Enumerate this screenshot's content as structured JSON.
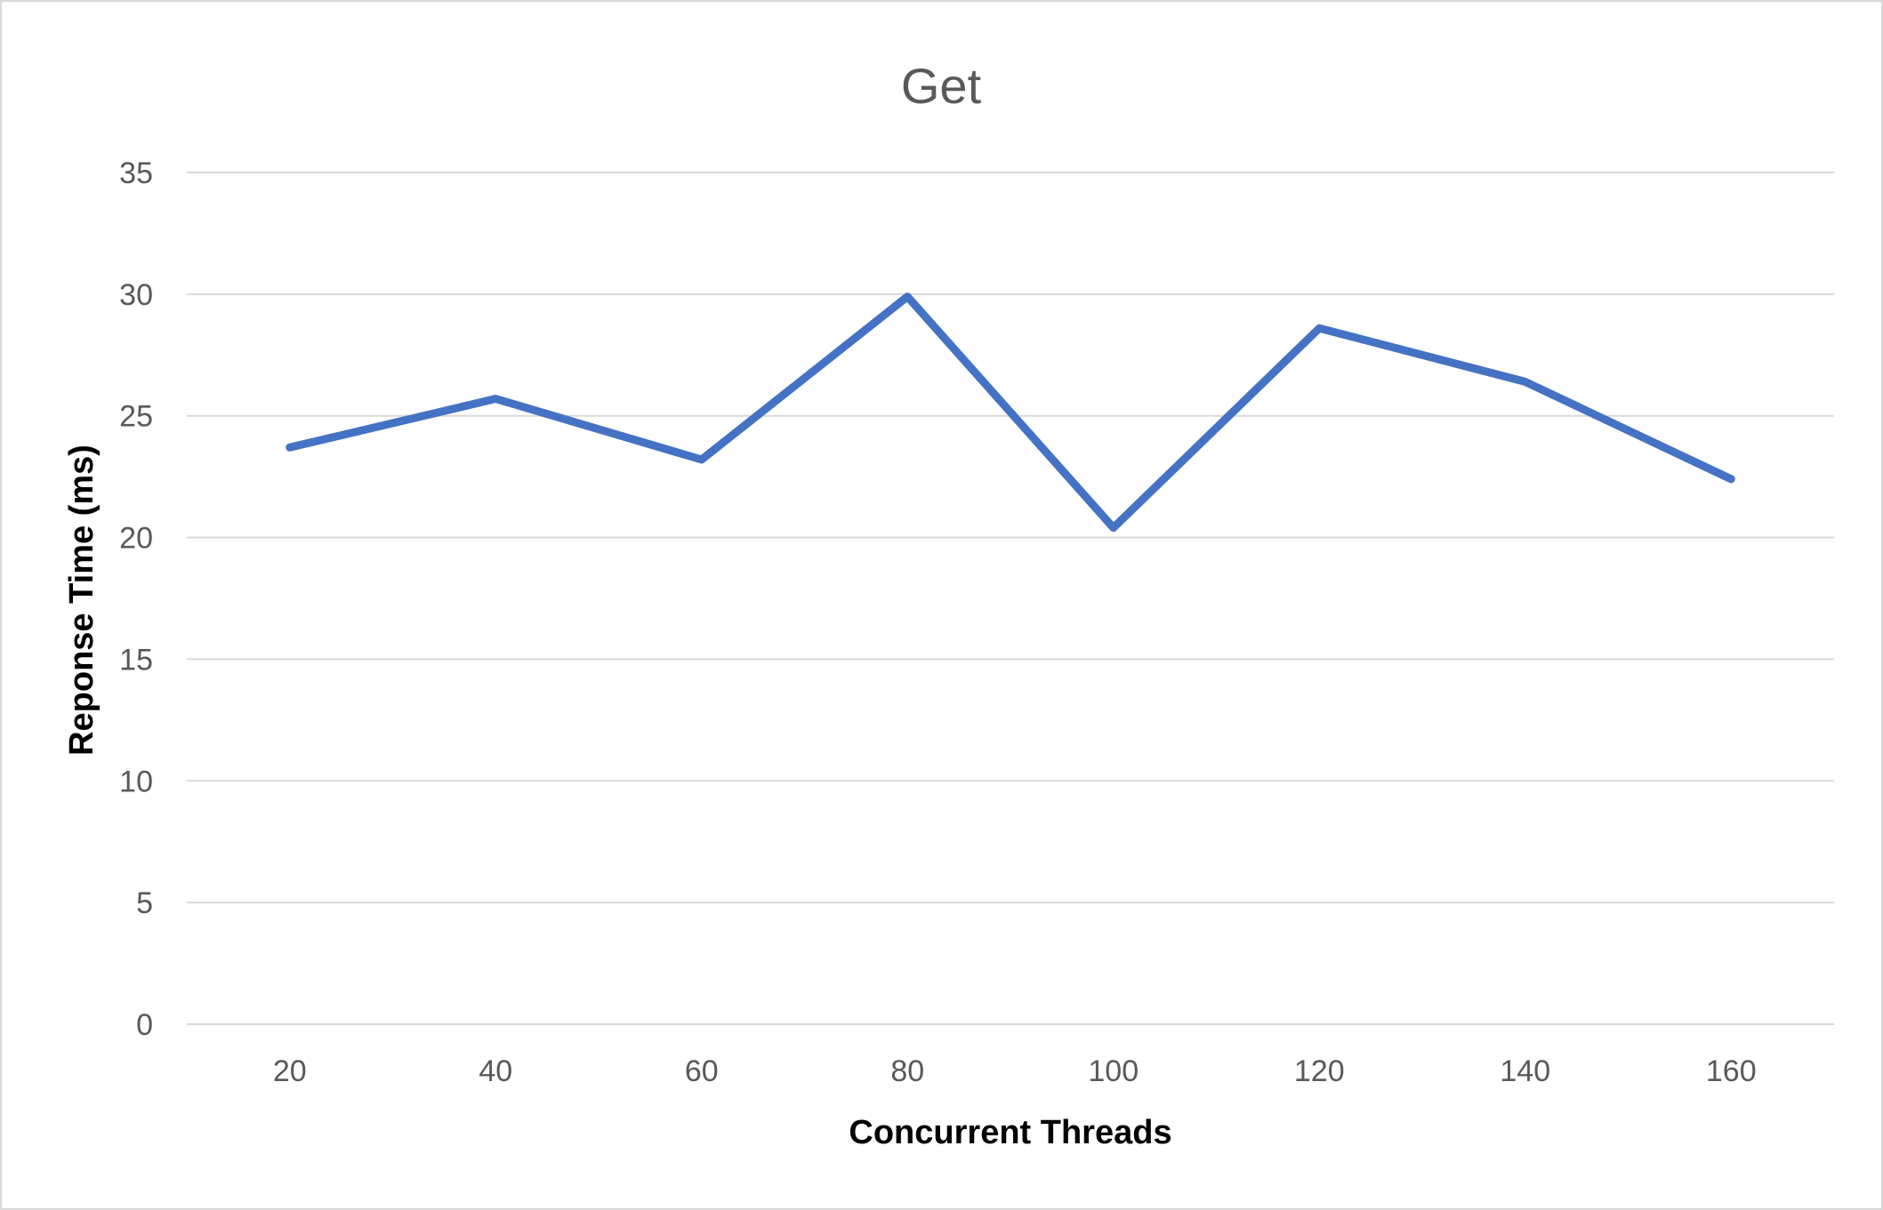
{
  "chart_data": {
    "type": "line",
    "title": "Get",
    "xlabel": "Concurrent Threads",
    "ylabel": "Reponse Time (ms)",
    "categories": [
      "20",
      "40",
      "60",
      "80",
      "100",
      "120",
      "140",
      "160"
    ],
    "series": [
      {
        "values": [
          23.7,
          25.7,
          23.2,
          29.9,
          20.4,
          28.6,
          26.4,
          22.4
        ],
        "color": "#4472C4"
      }
    ],
    "ylim": [
      0,
      35
    ],
    "yticks": [
      "0",
      "5",
      "10",
      "15",
      "20",
      "25",
      "30",
      "35"
    ],
    "grid": true,
    "legend": "none"
  },
  "colors": {
    "line": "#4472C4",
    "grid": "#D9D9D9",
    "tick_text": "#595959",
    "border": "#D9D9D9"
  }
}
